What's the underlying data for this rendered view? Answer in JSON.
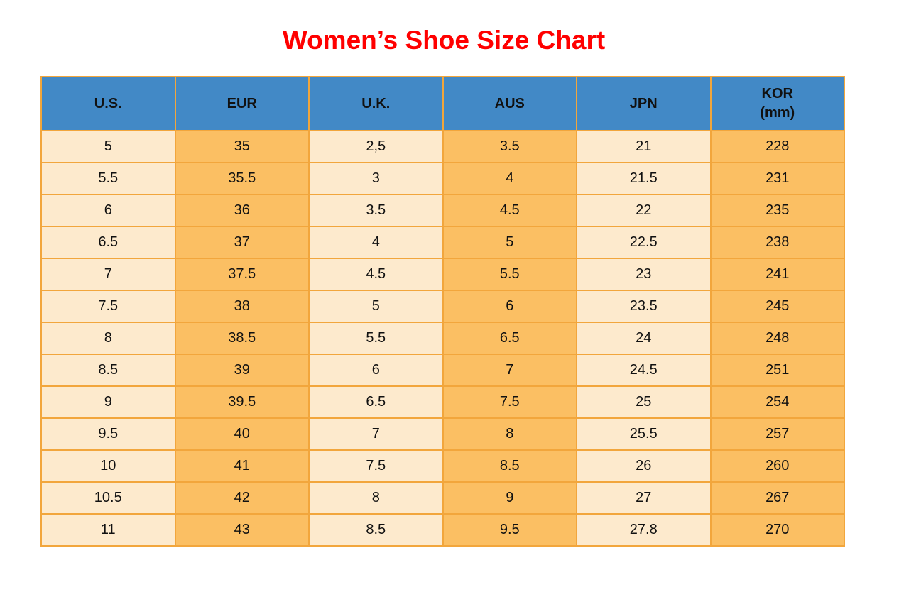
{
  "title": "Women’s Shoe Size Chart",
  "colors": {
    "title_red": "#ff0000",
    "header_blue": "#4289c6",
    "column_cream": "#fdeacd",
    "column_orange": "#fbbf63",
    "border_orange": "#f2a63c",
    "text_black": "#111111",
    "page_background": "#ffffff"
  },
  "chart_data": {
    "type": "table",
    "title": "Women’s Shoe Size Chart",
    "columns": [
      {
        "label": "U.S."
      },
      {
        "label": "EUR"
      },
      {
        "label": "U.K."
      },
      {
        "label": "AUS"
      },
      {
        "label": "JPN"
      },
      {
        "label": "KOR",
        "sublabel": "(mm)"
      }
    ],
    "rows": [
      [
        "5",
        "35",
        "2,5",
        "3.5",
        "21",
        "228"
      ],
      [
        "5.5",
        "35.5",
        "3",
        "4",
        "21.5",
        "231"
      ],
      [
        "6",
        "36",
        "3.5",
        "4.5",
        "22",
        "235"
      ],
      [
        "6.5",
        "37",
        "4",
        "5",
        "22.5",
        "238"
      ],
      [
        "7",
        "37.5",
        "4.5",
        "5.5",
        "23",
        "241"
      ],
      [
        "7.5",
        "38",
        "5",
        "6",
        "23.5",
        "245"
      ],
      [
        "8",
        "38.5",
        "5.5",
        "6.5",
        "24",
        "248"
      ],
      [
        "8.5",
        "39",
        "6",
        "7",
        "24.5",
        "251"
      ],
      [
        "9",
        "39.5",
        "6.5",
        "7.5",
        "25",
        "254"
      ],
      [
        "9.5",
        "40",
        "7",
        "8",
        "25.5",
        "257"
      ],
      [
        "10",
        "41",
        "7.5",
        "8.5",
        "26",
        "260"
      ],
      [
        "10.5",
        "42",
        "8",
        "9",
        "27",
        "267"
      ],
      [
        "11",
        "43",
        "8.5",
        "9.5",
        "27.8",
        "270"
      ]
    ]
  }
}
